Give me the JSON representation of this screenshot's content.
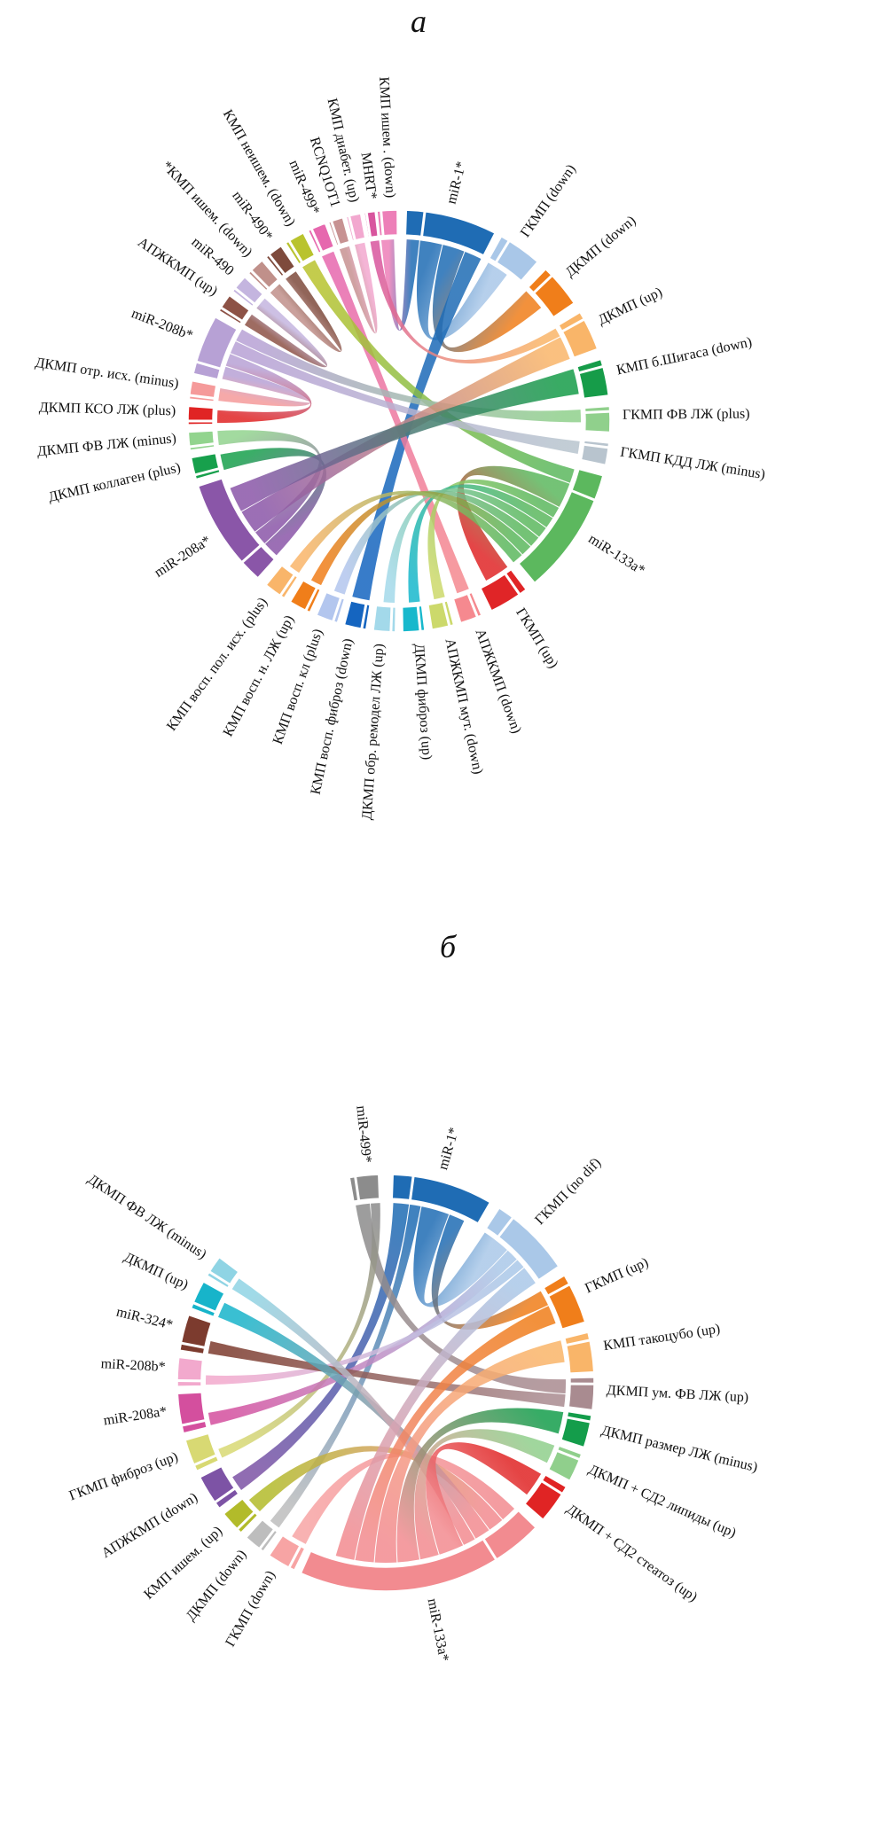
{
  "figure": {
    "background": "#ffffff",
    "panel_a_title": "а",
    "panel_b_title": "б"
  },
  "chart_data": [
    {
      "type": "chord",
      "title": "а",
      "legend_position": "none",
      "grid": false,
      "segments": [
        {
          "label": "КМП ишем . (down)",
          "color": "#ed7fb8",
          "start": 354,
          "end": 359.5
        },
        {
          "label": "miR-1*",
          "color": "#1f6cb4",
          "start": 2,
          "end": 27
        },
        {
          "label": "ГКМП (down)",
          "color": "#a9c7e8",
          "start": 29,
          "end": 41
        },
        {
          "label": "ДКМП (down)",
          "color": "#f07e1a",
          "start": 44,
          "end": 56
        },
        {
          "label": "ДКМП (up)",
          "color": "#f9b569",
          "start": 59,
          "end": 70
        },
        {
          "label": "КМП б.Шигаса (down)",
          "color": "#169c49",
          "start": 73,
          "end": 83
        },
        {
          "label": "ГКМП ФВ ЛЖ (plus)",
          "color": "#90d08c",
          "start": 86,
          "end": 93
        },
        {
          "label": "ГКМП КДД ЛЖ (minus)",
          "color": "#b8c4ce",
          "start": 96,
          "end": 102
        },
        {
          "label": "miR-133a*",
          "color": "#5cb85e",
          "start": 105,
          "end": 140
        },
        {
          "label": "ГКМП (up)",
          "color": "#e02527",
          "start": 143,
          "end": 154
        },
        {
          "label": "АПЖКМП (down)",
          "color": "#f5898f",
          "start": 157,
          "end": 163
        },
        {
          "label": "АПЖКМП мут. (down)",
          "color": "#ccd96b",
          "start": 165,
          "end": 171
        },
        {
          "label": "ДКМП фиброз (up)",
          "color": "#17b8cc",
          "start": 173,
          "end": 179
        },
        {
          "label": "ДКМП обр. ремодел ЛЖ (up)",
          "color": "#a3d9ea",
          "start": 181,
          "end": 187
        },
        {
          "label": "КМП восп. фиброз (down)",
          "color": "#1565c0",
          "start": 189,
          "end": 195
        },
        {
          "label": "КМП восп. кл (plus)",
          "color": "#b3c6ee",
          "start": 197,
          "end": 203
        },
        {
          "label": "КМП восп. н. ЛЖ (up)",
          "color": "#f07e1a",
          "start": 205,
          "end": 211
        },
        {
          "label": "КМП восп. пол. исх. (plus)",
          "color": "#f9b56a",
          "start": 213,
          "end": 219
        },
        {
          "label": "miR-208a*",
          "color": "#8a56a8",
          "start": 222,
          "end": 252
        },
        {
          "label": "ДКМП коллаген (plus)",
          "color": "#17a04c",
          "start": 254,
          "end": 260
        },
        {
          "label": "ДКМП ФВ ЛЖ (minus)",
          "color": "#92d48e",
          "start": 262,
          "end": 267
        },
        {
          "label": "ДКМП КСО ЛЖ (plus)",
          "color": "#e02424",
          "start": 269,
          "end": 274
        },
        {
          "label": "ДКМП отр. исх. (minus)",
          "color": "#f59a9a",
          "start": 276,
          "end": 281
        },
        {
          "label": "miR-208b*",
          "color": "#b7a1d5",
          "start": 283,
          "end": 299.5
        },
        {
          "label": "АПЖКМП (up)",
          "color": "#8d5246",
          "start": 301.5,
          "end": 306.5
        },
        {
          "label": "miR-490",
          "color": "#c4b5df",
          "start": 308,
          "end": 313
        },
        {
          "label": "*КМП ишем. (down)",
          "color": "#c0908a",
          "start": 314.5,
          "end": 319.5
        },
        {
          "label": "miR-490*",
          "color": "#7e4a3c",
          "start": 321,
          "end": 326
        },
        {
          "label": "КМП неишем. (down)",
          "color": "#b9c32e",
          "start": 327.5,
          "end": 333
        },
        {
          "label": "miR-499*",
          "color": "#e668ae",
          "start": 334.5,
          "end": 339.5
        },
        {
          "label": "RCNQ1OT1",
          "color": "#c79292",
          "start": 340.5,
          "end": 344.5
        },
        {
          "label": "КМП диабет. (up)",
          "color": "#f2a8cf",
          "start": 345.5,
          "end": 349.5
        },
        {
          "label": "MHRT*",
          "color": "#d8559e",
          "start": 350.5,
          "end": 353.5
        }
      ],
      "chords": [
        {
          "from": "miR-1*",
          "to": "КМП ишем . (down)",
          "width": 4
        },
        {
          "from": "miR-1*",
          "to": "ГКМП (down)",
          "width": 7
        },
        {
          "from": "miR-1*",
          "to": "ДКМП (down)",
          "width": 7
        },
        {
          "from": "miR-1*",
          "to": "КМП восп. фиброз (down)",
          "width": 5.5
        },
        {
          "from": "MHRT*",
          "to": "ДКМП (up)",
          "width": 2.8
        },
        {
          "from": "RCNQ1OT1",
          "to": "КМП диабет. (up)",
          "width": 3.2
        },
        {
          "from": "miR-499*",
          "to": "АПЖКМП (down)",
          "width": 4
        },
        {
          "from": "КМП неишем. (down)",
          "to": "miR-133a*",
          "width": 4.5
        },
        {
          "from": "miR-490*",
          "to": "*КМП ишем. (down)",
          "width": 4
        },
        {
          "from": "miR-490",
          "to": "АПЖКМП (up)",
          "width": 4
        },
        {
          "from": "miR-208b*",
          "to": "ДКМП отр. исх. (minus)",
          "width": 4
        },
        {
          "from": "miR-208b*",
          "to": "ДКМП КСО ЛЖ (plus)",
          "width": 4
        },
        {
          "from": "miR-208b*",
          "to": "ГКМП КДД ЛЖ (minus)",
          "width": 4
        },
        {
          "from": "miR-208b*",
          "to": "ГКМП ФВ ЛЖ (plus)",
          "width": 4
        },
        {
          "from": "miR-208a*",
          "to": "ДКМП коллаген (plus)",
          "width": 5
        },
        {
          "from": "miR-208a*",
          "to": "ДКМП ФВ ЛЖ (minus)",
          "width": 4.5
        },
        {
          "from": "miR-208a*",
          "to": "ДКМП (up)",
          "width": 7.5
        },
        {
          "from": "miR-208a*",
          "to": "КМП б.Шигаса (down)",
          "width": 8
        },
        {
          "from": "miR-133a*",
          "to": "ГКМП (up)",
          "width": 8
        },
        {
          "from": "miR-133a*",
          "to": "АПЖКМП мут. (down)",
          "width": 3.5
        },
        {
          "from": "miR-133a*",
          "to": "ДКМП фиброз (up)",
          "width": 3.5
        },
        {
          "from": "miR-133a*",
          "to": "ДКМП обр. ремодел ЛЖ (up)",
          "width": 3.5
        },
        {
          "from": "miR-133a*",
          "to": "КМП восп. кл (plus)",
          "width": 3.5
        },
        {
          "from": "miR-133a*",
          "to": "КМП восп. н. ЛЖ (up)",
          "width": 3.5
        },
        {
          "from": "miR-133a*",
          "to": "КМП восп. пол. исх. (plus)",
          "width": 3.5
        }
      ]
    },
    {
      "type": "chord",
      "title": "б",
      "legend_position": "none",
      "grid": false,
      "segments": [
        {
          "label": "miR-499*",
          "color": "#8c8c8c",
          "start": 350,
          "end": 358
        },
        {
          "label": "miR-1*",
          "color": "#1f6cb4",
          "start": 2,
          "end": 30
        },
        {
          "label": "ГКМП (no dif)",
          "color": "#aac8e8",
          "start": 33,
          "end": 56
        },
        {
          "label": "ГКМП (up)",
          "color": "#f07e1a",
          "start": 59,
          "end": 73
        },
        {
          "label": "КМП такоцубо (up)",
          "color": "#f9b569",
          "start": 76,
          "end": 87
        },
        {
          "label": "ДКМП ум. ФВ ЛЖ (up)",
          "color": "#a98b90",
          "start": 88.5,
          "end": 97.5
        },
        {
          "label": "ДКМП размер ЛЖ (minus)",
          "color": "#149d4b",
          "start": 99,
          "end": 108
        },
        {
          "label": "ДКМП + СД2 липиды (up)",
          "color": "#90cf8c",
          "start": 110,
          "end": 118
        },
        {
          "label": "ДКМП + СД2 стеатоз (up)",
          "color": "#e02424",
          "start": 120,
          "end": 131
        },
        {
          "label": "miR-133a*",
          "color": "#f28b90",
          "start": 134,
          "end": 204
        },
        {
          "label": "ГКМП (down)",
          "color": "#f7a4a4",
          "start": 206,
          "end": 214
        },
        {
          "label": "ДКМП (down)",
          "color": "#bdbdbd",
          "start": 216,
          "end": 222
        },
        {
          "label": "КМП ишем. (up)",
          "color": "#b2bb2a",
          "start": 224,
          "end": 231
        },
        {
          "label": "АПЖКМП (down)",
          "color": "#7d53a5",
          "start": 233,
          "end": 243
        },
        {
          "label": "ГКМП фиброз (up)",
          "color": "#d8d973",
          "start": 245,
          "end": 254
        },
        {
          "label": "miR-208a*",
          "color": "#d44f9e",
          "start": 256,
          "end": 267
        },
        {
          "label": "miR-208b*",
          "color": "#f2a9cd",
          "start": 269,
          "end": 277
        },
        {
          "label": "miR-324*",
          "color": "#7c3b2e",
          "start": 279,
          "end": 289
        },
        {
          "label": "ДКМП (up)",
          "color": "#17b4ca",
          "start": 291,
          "end": 299
        },
        {
          "label": "ДКМП ФВ ЛЖ (minus)",
          "color": "#8fd4e4",
          "start": 301,
          "end": 307
        }
      ],
      "chords": [
        {
          "from": "АПЖКМП (down)",
          "to": "miR-1*",
          "width": 5
        },
        {
          "from": "miR-1*",
          "to": "ДКМП (down)",
          "width": 3.5
        },
        {
          "from": "miR-1*",
          "to": "ГКМП (no dif)",
          "width": 9
        },
        {
          "from": "miR-1*",
          "to": "ГКМП (up)",
          "width": 5
        },
        {
          "from": "miR-499*",
          "to": "ДКМП ум. ФВ ЛЖ (up)",
          "width": 4.5
        },
        {
          "from": "ГКМП фиброз (up)",
          "to": "miR-499*",
          "width": 3
        },
        {
          "from": "miR-208a*",
          "to": "ГКМП (no dif)",
          "width": 4
        },
        {
          "from": "miR-208b*",
          "to": "ГКМП (no dif)",
          "width": 3
        },
        {
          "from": "miR-324*",
          "to": "ДКМП ум. ФВ ЛЖ (up)",
          "width": 4
        },
        {
          "from": "ГКМП (down)",
          "to": "miR-133a*",
          "width": 5
        },
        {
          "from": "КМП ишем. (up)",
          "to": "miR-133a*",
          "width": 5
        },
        {
          "from": "ДКМП (up)",
          "to": "miR-133a*",
          "width": 5
        },
        {
          "from": "ДКМП ФВ ЛЖ (minus)",
          "to": "miR-133a*",
          "width": 4
        },
        {
          "from": "miR-133a*",
          "to": "ДКМП + СД2 стеатоз (up)",
          "width": 8
        },
        {
          "from": "miR-133a*",
          "to": "ДКМП + СД2 липиды (up)",
          "width": 6
        },
        {
          "from": "miR-133a*",
          "to": "ДКМП размер ЛЖ (minus)",
          "width": 7
        },
        {
          "from": "miR-133a*",
          "to": "КМП такоцубо (up)",
          "width": 7
        },
        {
          "from": "miR-133a*",
          "to": "ГКМП (up)",
          "width": 6
        },
        {
          "from": "miR-133a*",
          "to": "ГКМП (no dif)",
          "width": 6
        }
      ]
    }
  ]
}
